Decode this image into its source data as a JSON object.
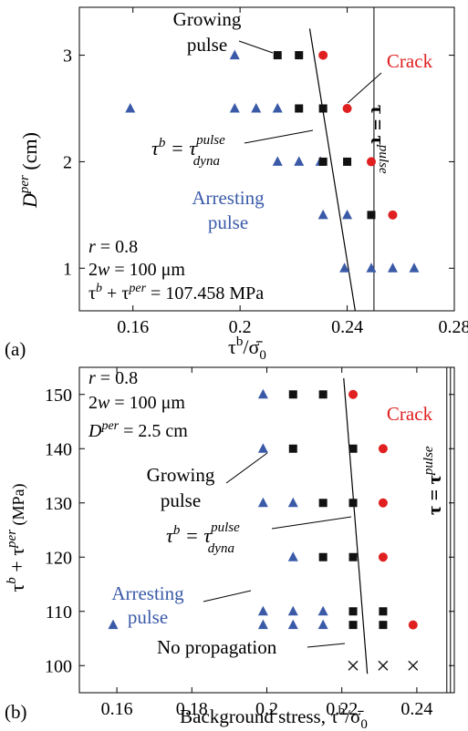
{
  "chart_data": [
    {
      "type": "scatter",
      "panel_label": "(a)",
      "xlim": [
        0.14,
        0.28
      ],
      "ylim": [
        0.6,
        3.45
      ],
      "xticks": [
        0.16,
        0.2,
        0.24,
        0.28
      ],
      "xtick_labels": [
        "0.16",
        "0.2",
        "0.24",
        "0.28"
      ],
      "yticks": [
        1,
        2,
        3
      ],
      "ytick_labels": [
        "1",
        "2",
        "3"
      ],
      "xlabel": "τb/σ̄0",
      "ylabel": "Dper (cm)",
      "grid": false,
      "colors": {
        "arresting": "#3a5aa8",
        "growing": "#111111",
        "crack": "#e02020",
        "line": "#000000"
      },
      "series": [
        {
          "name": "Arresting pulse",
          "marker": "triangle",
          "points": [
            [
              0.159,
              2.5
            ],
            [
              0.198,
              3.0
            ],
            [
              0.198,
              2.5
            ],
            [
              0.206,
              2.5
            ],
            [
              0.214,
              2.5
            ],
            [
              0.214,
              2.0
            ],
            [
              0.222,
              2.0
            ],
            [
              0.23,
              2.0
            ],
            [
              0.231,
              1.5
            ],
            [
              0.24,
              1.5
            ],
            [
              0.239,
              1.0
            ],
            [
              0.249,
              1.0
            ],
            [
              0.257,
              1.0
            ],
            [
              0.265,
              1.0
            ]
          ]
        },
        {
          "name": "Growing pulse",
          "marker": "square",
          "points": [
            [
              0.214,
              3.0
            ],
            [
              0.222,
              3.0
            ],
            [
              0.222,
              2.5
            ],
            [
              0.231,
              2.5
            ],
            [
              0.231,
              2.0
            ],
            [
              0.24,
              2.0
            ],
            [
              0.249,
              1.5
            ]
          ]
        },
        {
          "name": "Crack",
          "marker": "circle",
          "points": [
            [
              0.231,
              3.0
            ],
            [
              0.24,
              2.5
            ],
            [
              0.249,
              2.0
            ],
            [
              0.257,
              1.5
            ]
          ]
        }
      ],
      "boundary_line": {
        "x": [
          0.226,
          0.243
        ],
        "y": [
          3.25,
          0.6
        ]
      },
      "vertical_line_x": 0.25,
      "annotations": {
        "growing": [
          "Growing",
          "pulse"
        ],
        "crack": "Crack",
        "arresting": [
          "Arresting",
          "pulse"
        ],
        "boundary": {
          "lhs": "τb = τ",
          "sub": "dyna",
          "sup": "pulse"
        },
        "vertical": "τ = τpulse",
        "params": [
          "r = 0.8",
          "2w = 100 μm",
          "τb + τper =  107.458 MPa"
        ]
      }
    },
    {
      "type": "scatter",
      "panel_label": "(b)",
      "xlim": [
        0.15,
        0.25
      ],
      "ylim": [
        95,
        155
      ],
      "xticks": [
        0.16,
        0.18,
        0.2,
        0.22,
        0.24
      ],
      "xtick_labels": [
        "0.16",
        "0.18",
        "0.2",
        "0.22",
        "0.24"
      ],
      "yticks": [
        100,
        110,
        120,
        130,
        140,
        150
      ],
      "ytick_labels": [
        "100",
        "110",
        "120",
        "130",
        "140",
        "150"
      ],
      "xlabel": "Background stress, τb/σ̄0",
      "ylabel": "τb + τper (MPa)",
      "grid": false,
      "colors": {
        "arresting": "#3a5aa8",
        "growing": "#111111",
        "crack": "#e02020",
        "nopropagation": "#111111",
        "line": "#000000"
      },
      "series": [
        {
          "name": "Arresting pulse",
          "marker": "triangle",
          "points": [
            [
              0.159,
              107.5
            ],
            [
              0.199,
              107.5
            ],
            [
              0.207,
              107.5
            ],
            [
              0.215,
              107.5
            ],
            [
              0.199,
              110
            ],
            [
              0.207,
              110
            ],
            [
              0.215,
              110
            ],
            [
              0.207,
              120
            ],
            [
              0.199,
              130
            ],
            [
              0.207,
              130
            ],
            [
              0.199,
              140
            ],
            [
              0.199,
              150
            ]
          ]
        },
        {
          "name": "Growing pulse",
          "marker": "square",
          "points": [
            [
              0.207,
              150
            ],
            [
              0.215,
              150
            ],
            [
              0.207,
              140
            ],
            [
              0.223,
              140
            ],
            [
              0.215,
              130
            ],
            [
              0.223,
              130
            ],
            [
              0.215,
              120
            ],
            [
              0.223,
              120
            ],
            [
              0.223,
              110
            ],
            [
              0.231,
              110
            ],
            [
              0.223,
              107.5
            ],
            [
              0.231,
              107.5
            ]
          ]
        },
        {
          "name": "Crack",
          "marker": "circle",
          "points": [
            [
              0.223,
              150
            ],
            [
              0.231,
              140
            ],
            [
              0.231,
              130
            ],
            [
              0.231,
              120
            ],
            [
              0.239,
              107.5
            ]
          ]
        },
        {
          "name": "No propagation",
          "marker": "x",
          "points": [
            [
              0.223,
              100
            ],
            [
              0.231,
              100
            ],
            [
              0.239,
              100
            ]
          ]
        }
      ],
      "boundary_line": {
        "x": [
          0.2205,
          0.2268
        ],
        "y": [
          153,
          98.5
        ]
      },
      "vertical_line_x": 0.248,
      "annotations": {
        "params": [
          "r = 0.8",
          "2w = 100 μm",
          "Dper  = 2.5 cm"
        ],
        "crack": "Crack",
        "growing": [
          "Growing",
          "pulse"
        ],
        "boundary": {
          "lhs": "τb = τ",
          "sub": "dyna",
          "sup": "pulse"
        },
        "arresting": [
          "Arresting",
          "pulse"
        ],
        "nopropagation": "No propagation",
        "vertical": "τ = τpulse"
      }
    }
  ]
}
